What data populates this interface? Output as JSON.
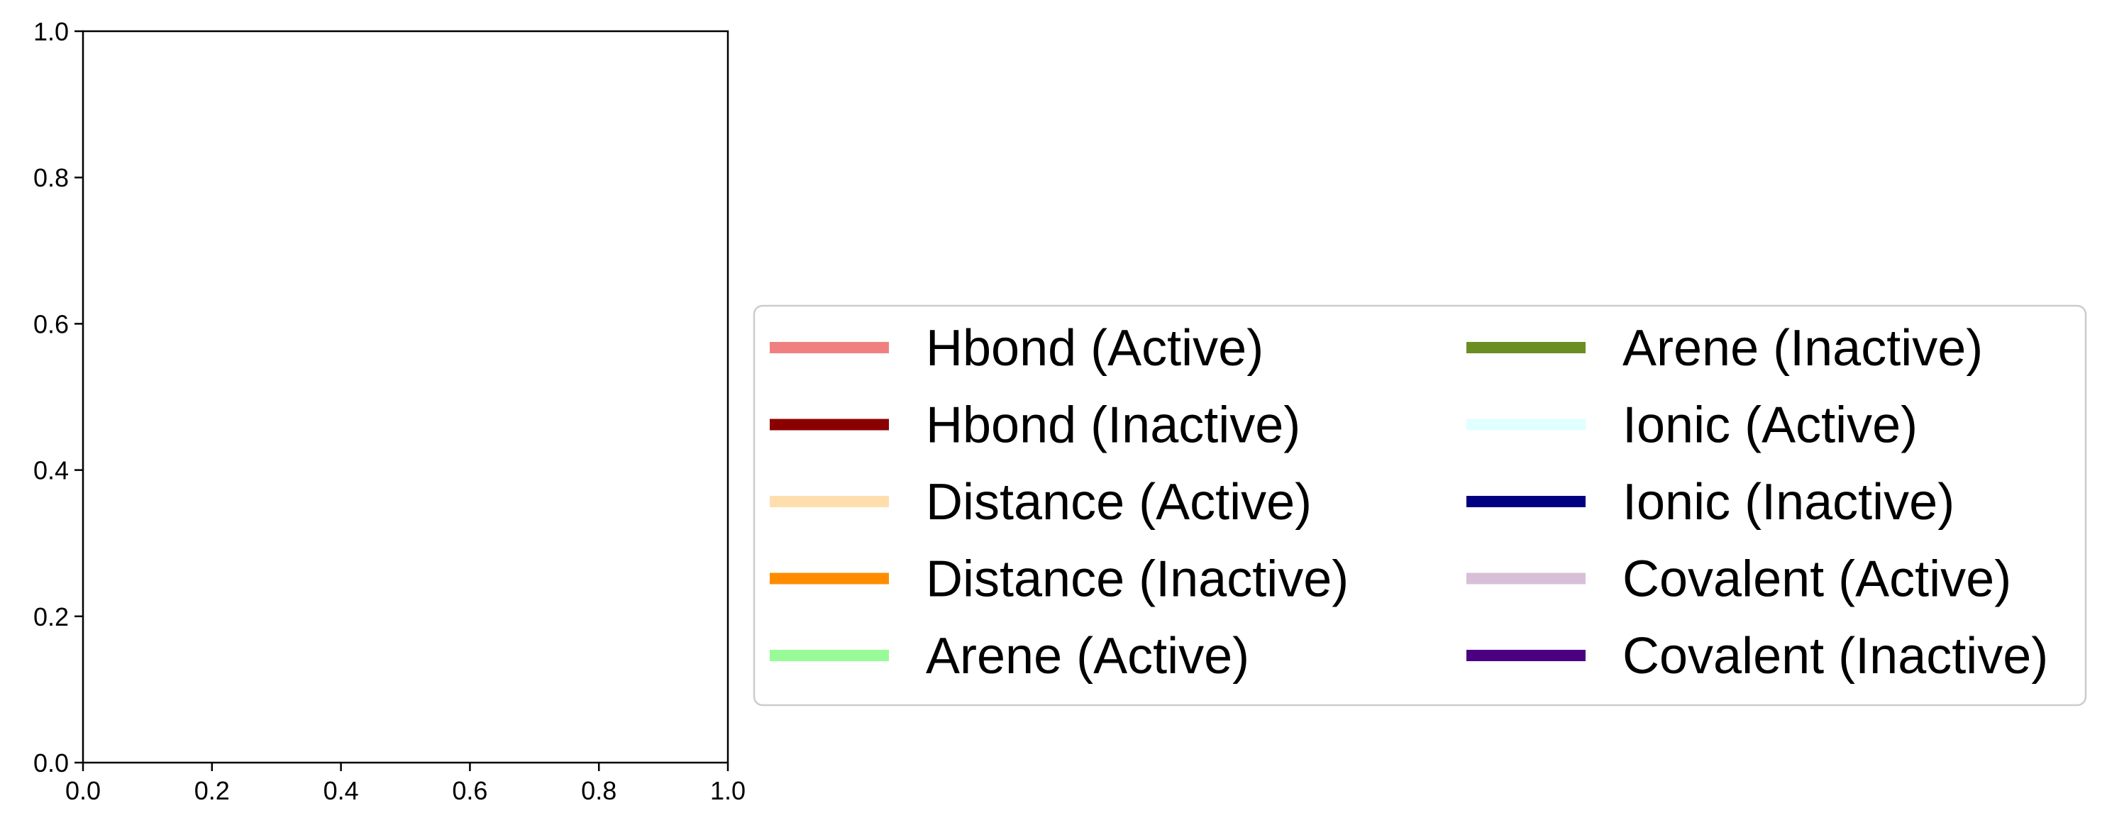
{
  "chart_data": {
    "type": "line",
    "title": "",
    "xlabel": "",
    "ylabel": "",
    "xlim": [
      0.0,
      1.0
    ],
    "ylim": [
      0.0,
      1.0
    ],
    "xticks": [
      "0.0",
      "0.2",
      "0.4",
      "0.6",
      "0.8",
      "1.0"
    ],
    "yticks": [
      "0.0",
      "0.2",
      "0.4",
      "0.6",
      "0.8",
      "1.0"
    ],
    "grid": false,
    "legend_position": "outside-right",
    "legend_columns": 2,
    "series": [
      {
        "name": "Hbond (Active)",
        "color": "#f08080",
        "values": []
      },
      {
        "name": "Hbond (Inactive)",
        "color": "#8b0000",
        "values": []
      },
      {
        "name": "Distance (Active)",
        "color": "#ffdead",
        "values": []
      },
      {
        "name": "Distance (Inactive)",
        "color": "#ff8c00",
        "values": []
      },
      {
        "name": "Arene (Active)",
        "color": "#98fb98",
        "values": []
      },
      {
        "name": "Arene (Inactive)",
        "color": "#6b8e23",
        "values": []
      },
      {
        "name": "Ionic (Active)",
        "color": "#e0ffff",
        "values": []
      },
      {
        "name": "Ionic (Inactive)",
        "color": "#000080",
        "values": []
      },
      {
        "name": "Covalent (Active)",
        "color": "#d8bfd8",
        "values": []
      },
      {
        "name": "Covalent (Inactive)",
        "color": "#4b0082",
        "values": []
      }
    ]
  }
}
